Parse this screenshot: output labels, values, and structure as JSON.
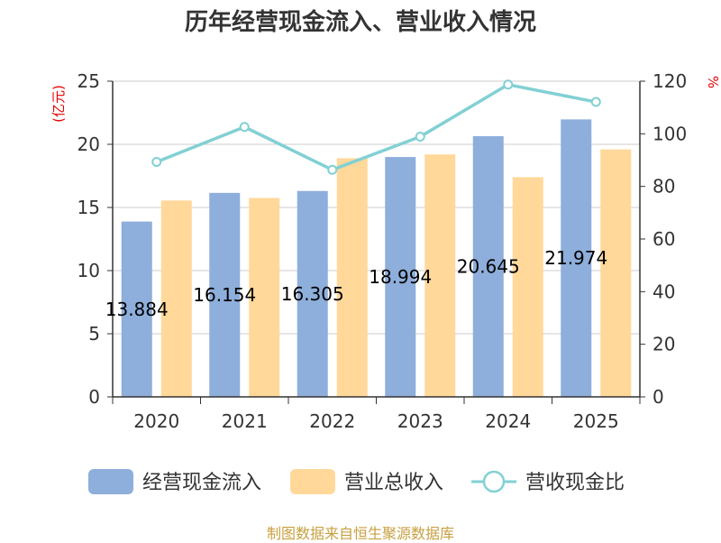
{
  "chart_data": {
    "type": "bar",
    "title": "历年经营现金流入、营业收入情况",
    "categories": [
      "2020",
      "2021",
      "2022",
      "2023",
      "2024",
      "2025"
    ],
    "y_left": {
      "unit": "(亿元)",
      "ylim": [
        0,
        25
      ],
      "ticks": [
        0,
        5,
        10,
        15,
        20,
        25
      ]
    },
    "y_right": {
      "unit": "%",
      "ylim": [
        0,
        120
      ],
      "ticks": [
        0,
        20,
        40,
        60,
        80,
        100,
        120
      ]
    },
    "series": [
      {
        "name": "经营现金流入",
        "type": "bar",
        "axis": "left",
        "color": "#8eaedb",
        "values": [
          13.884,
          16.154,
          16.305,
          18.994,
          20.645,
          21.974
        ],
        "labels": [
          "13.884",
          "16.154",
          "16.305",
          "18.994",
          "20.645",
          "21.974"
        ]
      },
      {
        "name": "营业总收入",
        "type": "bar",
        "axis": "left",
        "color": "#ffd89a",
        "values": [
          15.55,
          15.75,
          18.9,
          19.2,
          17.4,
          19.6
        ]
      },
      {
        "name": "营收现金比",
        "type": "line",
        "axis": "right",
        "color": "#82d0d4",
        "values": [
          89.3,
          102.6,
          86.3,
          98.9,
          118.7,
          112.1
        ]
      }
    ],
    "legend_position": "bottom",
    "grid": true
  },
  "source_note": "制图数据来自恒生聚源数据库"
}
